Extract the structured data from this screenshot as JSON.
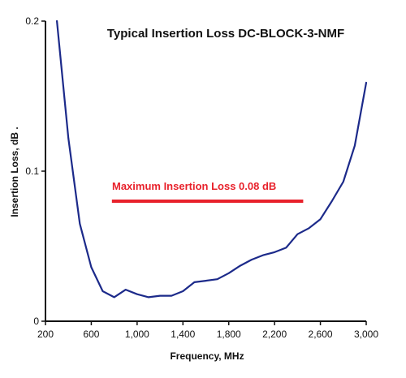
{
  "chart_data": {
    "type": "line",
    "title": "Typical Insertion Loss  DC-BLOCK-3-NMF",
    "xlabel": "Frequency, MHz",
    "ylabel": "Insertion Loss, dB  .",
    "xlim": [
      200,
      3000
    ],
    "ylim": [
      0,
      0.2
    ],
    "x_ticks": [
      200,
      600,
      1000,
      1400,
      1800,
      2200,
      2600,
      3000
    ],
    "x_tick_labels": [
      "200",
      "600",
      "1,000",
      "1,400",
      "1,800",
      "2,200",
      "2,600",
      "3,000"
    ],
    "y_ticks": [
      0,
      0.1,
      0.2
    ],
    "y_tick_labels": [
      "0",
      "0.1",
      "0.2"
    ],
    "grid": false,
    "legend": "none",
    "series": [
      {
        "color": "#1c2a8a",
        "x": [
          300,
          400,
          500,
          600,
          700,
          800,
          900,
          1000,
          1100,
          1200,
          1300,
          1400,
          1500,
          1600,
          1700,
          1800,
          1900,
          2000,
          2100,
          2200,
          2300,
          2400,
          2500,
          2600,
          2700,
          2800,
          2900,
          3000
        ],
        "y": [
          0.2,
          0.122,
          0.065,
          0.036,
          0.02,
          0.016,
          0.021,
          0.018,
          0.016,
          0.017,
          0.017,
          0.02,
          0.026,
          0.027,
          0.028,
          0.032,
          0.037,
          0.041,
          0.044,
          0.046,
          0.049,
          0.058,
          0.062,
          0.068,
          0.08,
          0.093,
          0.117,
          0.159
        ]
      }
    ],
    "annotation": {
      "text": "Maximum Insertion Loss 0.08 dB",
      "color": "#e8212b",
      "line_y": 0.08,
      "line_x": [
        780,
        2450
      ]
    }
  }
}
